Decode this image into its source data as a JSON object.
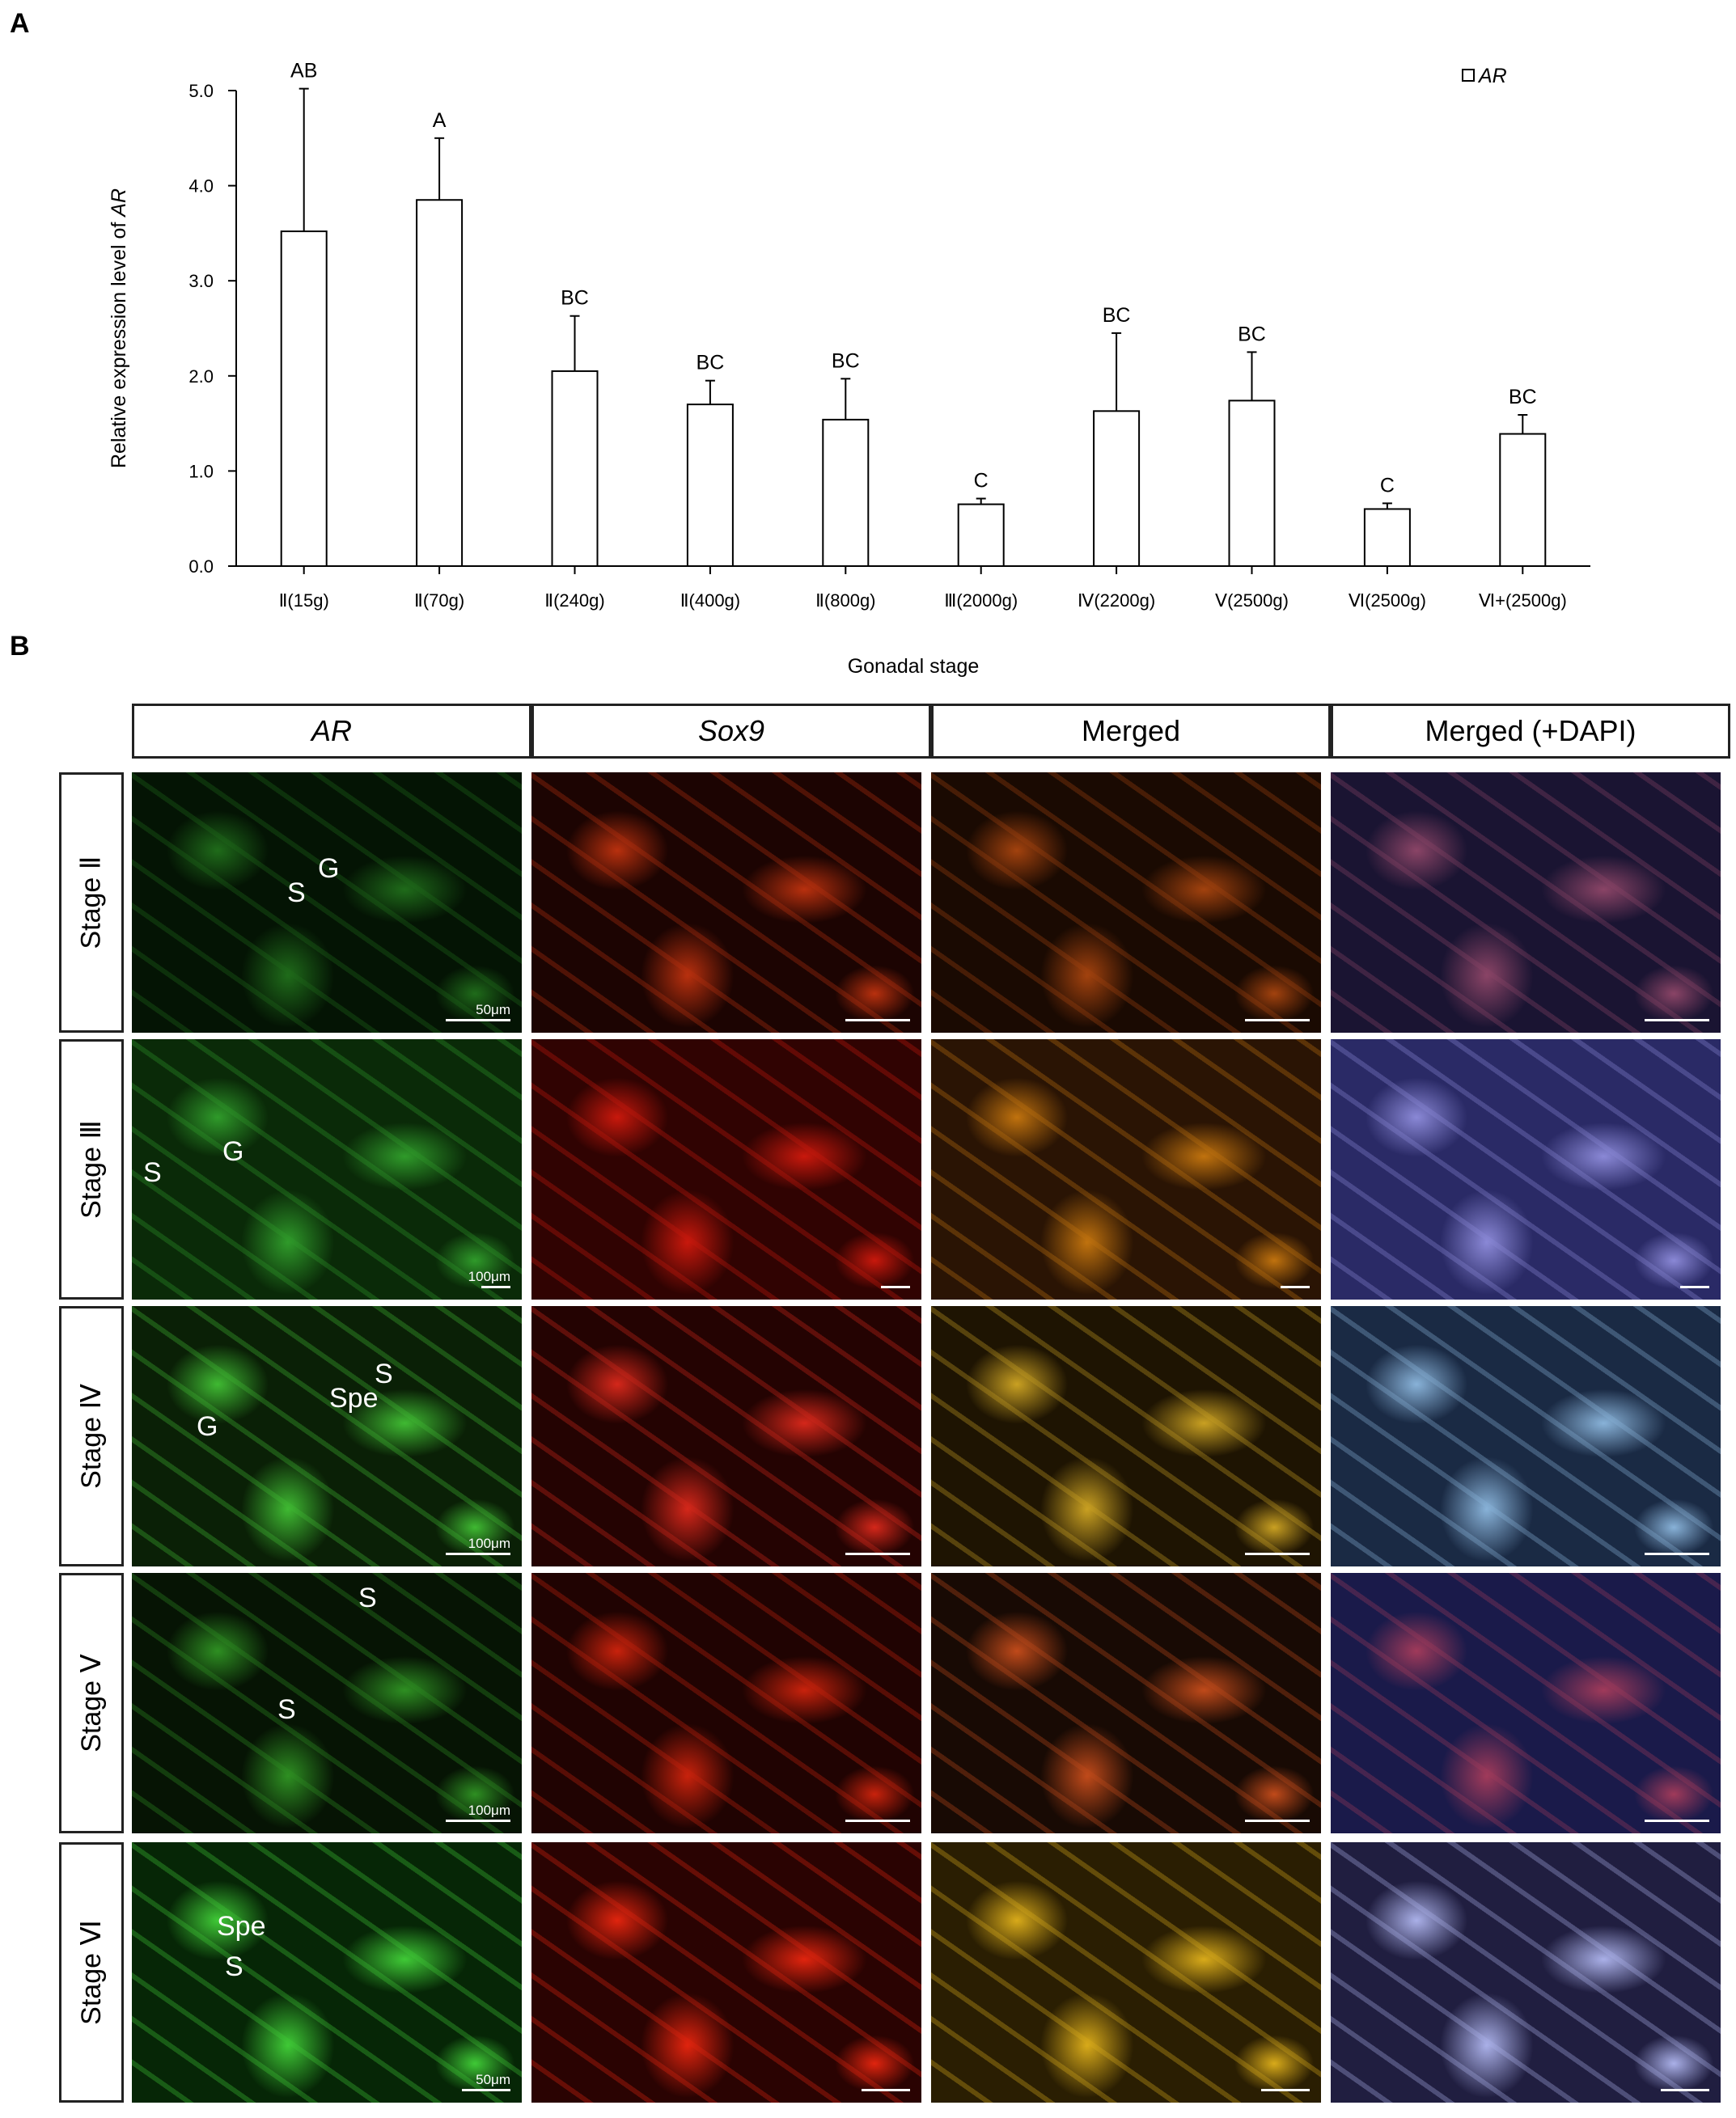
{
  "panel_a_label": "A",
  "panel_b_label": "B",
  "chart_data": {
    "type": "bar",
    "categories": [
      "Ⅱ(15g)",
      "Ⅱ(70g)",
      "Ⅱ(240g)",
      "Ⅱ(400g)",
      "Ⅱ(800g)",
      "Ⅲ(2000g)",
      "Ⅳ(2200g)",
      "Ⅴ(2500g)",
      "Ⅵ(2500g)",
      "Ⅵ+(2500g)"
    ],
    "series": [
      {
        "name": "AR",
        "values": [
          3.52,
          3.85,
          2.05,
          1.7,
          1.54,
          0.65,
          1.63,
          1.74,
          0.6,
          1.39
        ],
        "errors": [
          1.5,
          0.65,
          0.58,
          0.25,
          0.43,
          0.06,
          0.82,
          0.51,
          0.06,
          0.2
        ],
        "significance": [
          "AB",
          "A",
          "BC",
          "BC",
          "BC",
          "C",
          "BC",
          "BC",
          "C",
          "BC"
        ]
      }
    ],
    "ylabel_prefix": "Relative expression level of ",
    "ylabel_italic": "AR",
    "xlabel": "Gonadal stage",
    "ylim": [
      0,
      5
    ],
    "yticks": [
      "0.0",
      "1.0",
      "2.0",
      "3.0",
      "4.0",
      "5.0"
    ],
    "legend": "top-right",
    "grid": false,
    "bar_fill": "#ffffff",
    "bar_stroke": "#000000"
  },
  "figure_b": {
    "columns": [
      "AR",
      "Sox9",
      "Merged",
      "Merged (+DAPI)"
    ],
    "rows": [
      {
        "stage": "Stage Ⅱ",
        "scale_label": "50μm",
        "labels": [
          "G",
          "S"
        ]
      },
      {
        "stage": "Stage Ⅲ",
        "scale_label": "100μm",
        "labels": [
          "G",
          "S"
        ]
      },
      {
        "stage": "Stage Ⅳ",
        "scale_label": "100μm",
        "labels": [
          "S",
          "Spe",
          "G"
        ]
      },
      {
        "stage": "Stage Ⅴ",
        "scale_label": "100μm",
        "labels": [
          "S",
          "S"
        ]
      },
      {
        "stage": "Stage Ⅵ",
        "scale_label": "50μm",
        "labels": [
          "Spe",
          "S"
        ]
      }
    ]
  }
}
